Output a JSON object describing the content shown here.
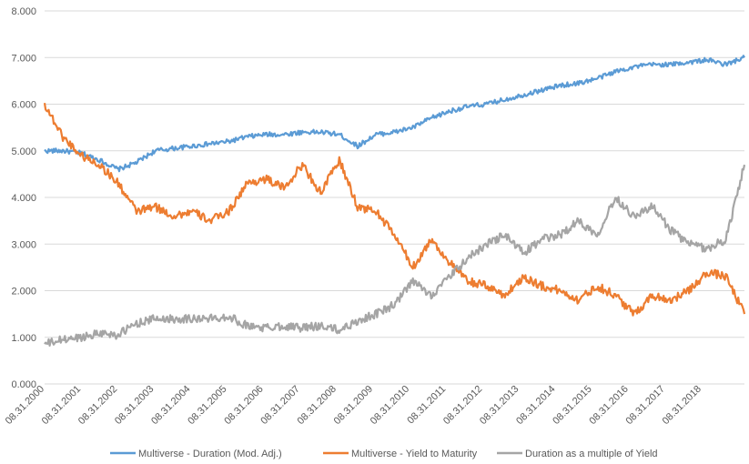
{
  "chart_data": {
    "type": "line",
    "title": "",
    "xlabel": "",
    "ylabel": "",
    "ylim": [
      0,
      8
    ],
    "yticks": [
      "0.000",
      "1.000",
      "2.000",
      "3.000",
      "4.000",
      "5.000",
      "6.000",
      "7.000",
      "8.000"
    ],
    "x_tick_labels": [
      "08.31.2000",
      "08.31.2001",
      "08.31.2002",
      "08.31.2003",
      "08.31.2004",
      "08.31.2005",
      "08.31.2006",
      "08.31.2007",
      "08.31.2008",
      "08.31.2009",
      "08.31.2010",
      "08.31.2011",
      "08.31.2012",
      "08.31.2013",
      "08.31.2014",
      "08.31.2015",
      "08.31.2016",
      "08.31.2017",
      "08.31.2018"
    ],
    "grid": "horizontal",
    "legend_position": "bottom",
    "x": [
      "2000-08-31",
      "2001-02-28",
      "2001-08-31",
      "2002-02-28",
      "2002-08-31",
      "2003-02-28",
      "2003-08-31",
      "2004-02-28",
      "2004-08-31",
      "2005-02-28",
      "2005-08-31",
      "2006-02-28",
      "2006-08-31",
      "2007-02-28",
      "2007-08-31",
      "2008-02-28",
      "2008-08-31",
      "2009-02-28",
      "2009-08-31",
      "2010-02-28",
      "2010-08-31",
      "2011-02-28",
      "2011-08-31",
      "2012-02-28",
      "2012-08-31",
      "2013-02-28",
      "2013-08-31",
      "2014-02-28",
      "2014-08-31",
      "2015-02-28",
      "2015-08-31",
      "2016-02-28",
      "2016-08-31",
      "2017-02-28",
      "2017-08-31",
      "2018-02-28",
      "2018-08-31",
      "2019-02-28",
      "2019-08-31"
    ],
    "series": [
      {
        "name": "Multiverse - Duration (Mod. Adj.)",
        "color": "#5b9bd5",
        "values": [
          5.0,
          5.0,
          4.95,
          4.8,
          4.6,
          4.75,
          5.0,
          5.05,
          5.1,
          5.15,
          5.2,
          5.3,
          5.35,
          5.35,
          5.4,
          5.4,
          5.35,
          5.1,
          5.35,
          5.4,
          5.5,
          5.7,
          5.85,
          5.95,
          6.0,
          6.1,
          6.2,
          6.3,
          6.4,
          6.45,
          6.55,
          6.7,
          6.8,
          6.85,
          6.85,
          6.9,
          6.95,
          6.85,
          7.0
        ]
      },
      {
        "name": "Multiverse - Yield to Maturity",
        "color": "#ed7d31",
        "values": [
          6.0,
          5.3,
          4.9,
          4.7,
          4.3,
          3.7,
          3.8,
          3.6,
          3.7,
          3.5,
          3.7,
          4.3,
          4.4,
          4.2,
          4.7,
          4.1,
          4.8,
          3.8,
          3.7,
          3.2,
          2.5,
          3.1,
          2.6,
          2.2,
          2.1,
          1.9,
          2.3,
          2.1,
          2.0,
          1.8,
          2.1,
          1.9,
          1.5,
          1.9,
          1.8,
          2.0,
          2.4,
          2.3,
          1.5
        ]
      },
      {
        "name": "Duration as a multiple of Yield",
        "color": "#a5a5a5",
        "values": [
          0.85,
          0.95,
          1.0,
          1.1,
          1.05,
          1.3,
          1.4,
          1.4,
          1.4,
          1.4,
          1.45,
          1.25,
          1.2,
          1.25,
          1.2,
          1.25,
          1.15,
          1.35,
          1.5,
          1.7,
          2.2,
          1.9,
          2.3,
          2.7,
          3.0,
          3.2,
          2.8,
          3.1,
          3.2,
          3.5,
          3.2,
          4.0,
          3.6,
          3.8,
          3.3,
          3.0,
          2.9,
          3.1,
          4.7
        ]
      }
    ]
  }
}
